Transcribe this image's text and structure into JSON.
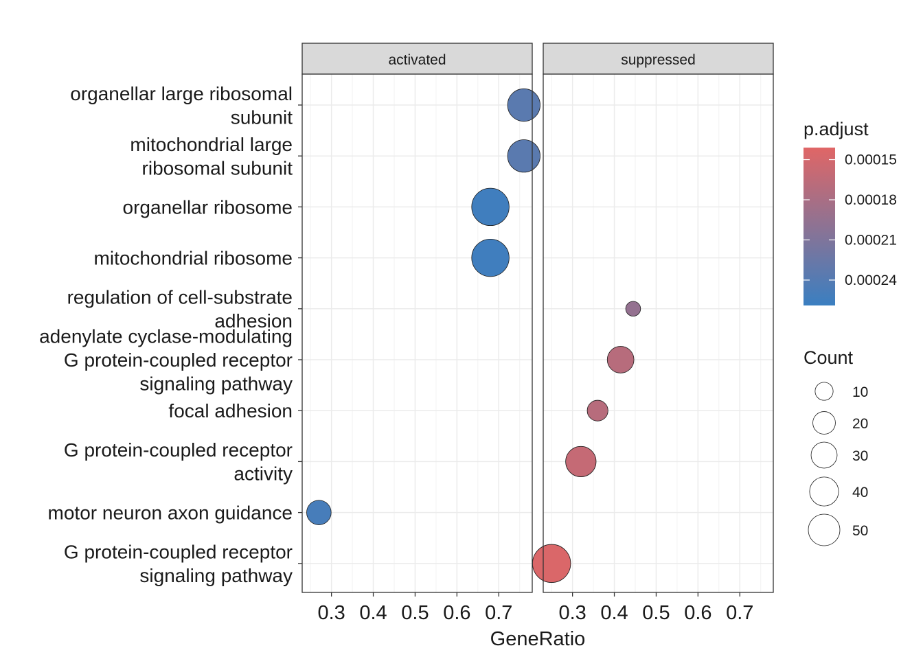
{
  "chart_data": {
    "type": "scatter",
    "facets": [
      "activated",
      "suppressed"
    ],
    "xlabel": "GeneRatio",
    "x_ticks": [
      0.3,
      0.4,
      0.5,
      0.6,
      0.7
    ],
    "xlim": [
      0.23,
      0.78
    ],
    "categories": [
      [
        "organellar large ribosomal",
        "subunit"
      ],
      [
        "mitochondrial large",
        "ribosomal subunit"
      ],
      [
        "organellar ribosome"
      ],
      [
        "mitochondrial ribosome"
      ],
      [
        "regulation of cell-substrate",
        "adhesion"
      ],
      [
        "adenylate cyclase-modulating",
        "G protein-coupled receptor",
        "signaling pathway"
      ],
      [
        "focal adhesion"
      ],
      [
        "G protein-coupled receptor",
        "activity"
      ],
      [
        "motor neuron axon guidance"
      ],
      [
        "G protein-coupled receptor",
        "signaling pathway"
      ]
    ],
    "points": [
      {
        "facet": "activated",
        "category_index": 0,
        "x": 0.76,
        "count": 35,
        "p_adjust": 0.000236
      },
      {
        "facet": "activated",
        "category_index": 1,
        "x": 0.76,
        "count": 35,
        "p_adjust": 0.000236
      },
      {
        "facet": "activated",
        "category_index": 2,
        "x": 0.68,
        "count": 48,
        "p_adjust": 0.000255
      },
      {
        "facet": "activated",
        "category_index": 3,
        "x": 0.68,
        "count": 48,
        "p_adjust": 0.000255
      },
      {
        "facet": "activated",
        "category_index": 8,
        "x": 0.27,
        "count": 18,
        "p_adjust": 0.00025
      },
      {
        "facet": "suppressed",
        "category_index": 4,
        "x": 0.445,
        "count": 5,
        "p_adjust": 0.000195
      },
      {
        "facet": "suppressed",
        "category_index": 5,
        "x": 0.415,
        "count": 22,
        "p_adjust": 0.00017
      },
      {
        "facet": "suppressed",
        "category_index": 6,
        "x": 0.36,
        "count": 12,
        "p_adjust": 0.00017
      },
      {
        "facet": "suppressed",
        "category_index": 7,
        "x": 0.32,
        "count": 30,
        "p_adjust": 0.00016
      },
      {
        "facet": "suppressed",
        "category_index": 9,
        "x": 0.25,
        "count": 50,
        "p_adjust": 0.000145
      }
    ],
    "color_legend": {
      "title": "p.adjust",
      "ticks": [
        "0.00015",
        "0.00018",
        "0.00021",
        "0.00024"
      ],
      "tick_values": [
        0.00015,
        0.00018,
        0.00021,
        0.00024
      ],
      "range": [
        0.000141,
        0.000259
      ],
      "low_color": "#e06666",
      "high_color": "#3a7fc1"
    },
    "size_legend": {
      "title": "Count",
      "values": [
        10,
        20,
        30,
        40,
        50
      ],
      "labels": [
        "10",
        "20",
        "30",
        "40",
        "50"
      ]
    },
    "grid": true
  }
}
